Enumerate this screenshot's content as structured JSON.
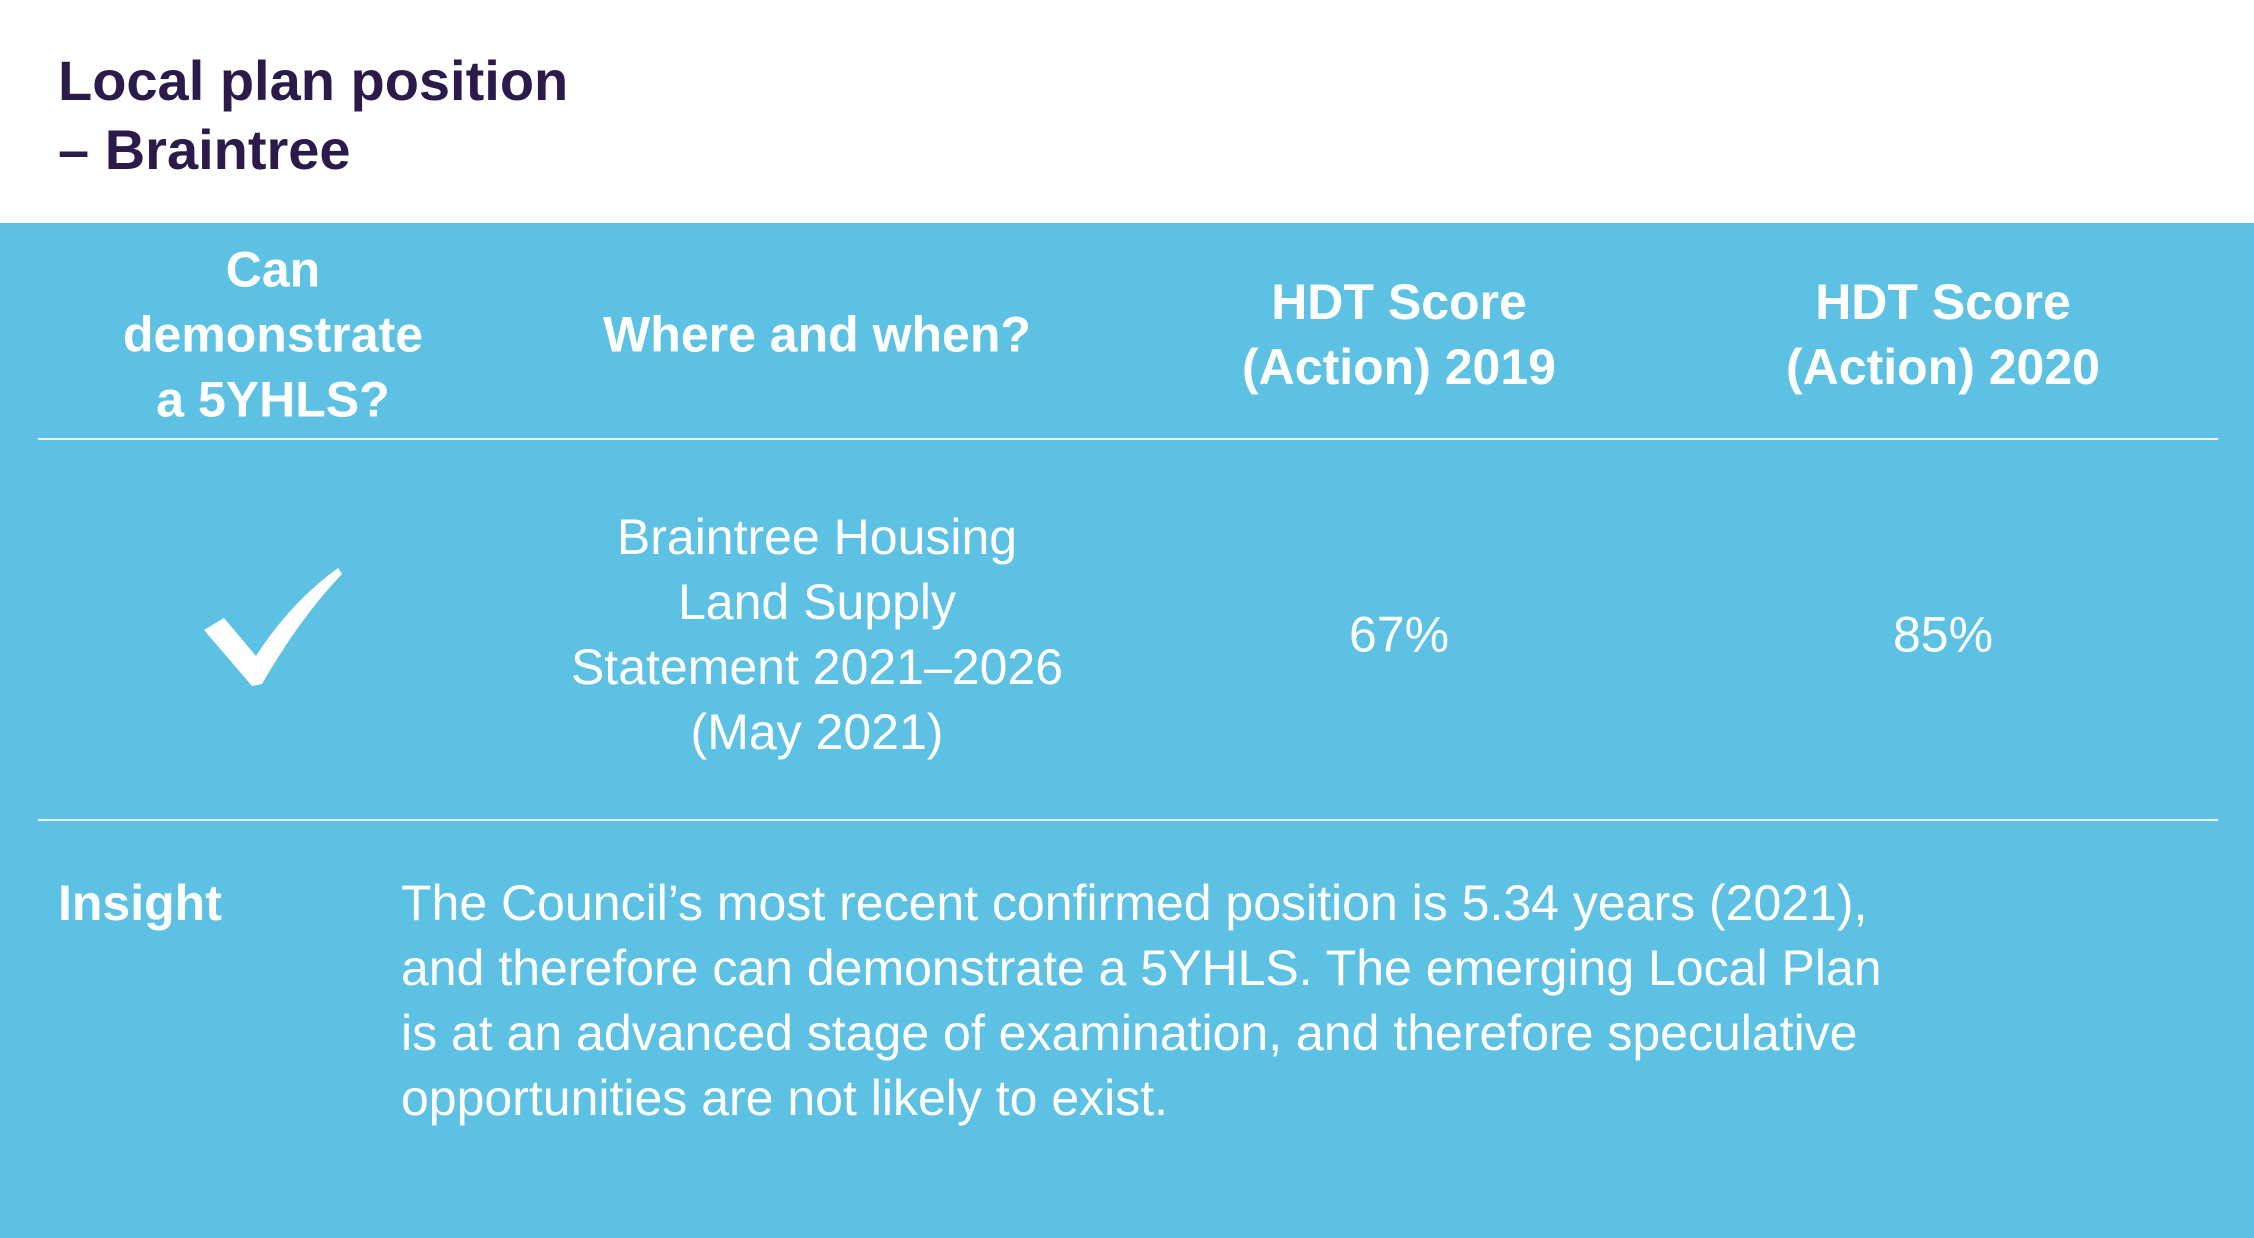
{
  "header": {
    "title": [
      "Local plan position",
      "– Braintree"
    ]
  },
  "table": {
    "columns": [
      [
        "Can",
        "demonstrate",
        "a 5YHLS?"
      ],
      [
        "Where and when?"
      ],
      [
        "HDT Score",
        "(Action) 2019"
      ],
      [
        "HDT Score",
        "(Action) 2020"
      ]
    ],
    "row": {
      "where": [
        "Braintree Housing",
        "Land Supply",
        "Statement 2021–2026",
        "(May 2021)"
      ],
      "hdt_2019": "67%",
      "hdt_2020": "85%"
    }
  },
  "insight": {
    "label": "Insight",
    "text": [
      "The Council’s most recent confirmed position is 5.34 years (2021),",
      "and therefore can demonstrate a 5YHLS. The emerging Local Plan",
      "is at an advanced stage of examination, and therefore speculative",
      "opportunities are not likely to exist."
    ]
  }
}
